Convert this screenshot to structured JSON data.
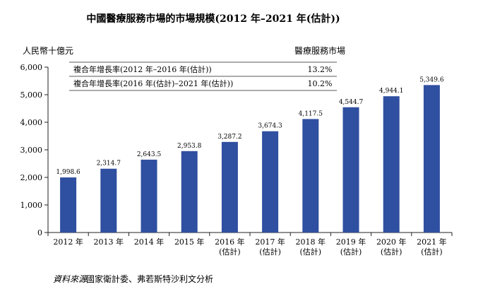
{
  "chart_data": {
    "type": "bar",
    "title": "中國醫療服務市場的市場規模(2012 年–2021 年(估計))",
    "ylabel": "人民幣十億元",
    "categories": [
      [
        "2012 年"
      ],
      [
        "2013 年"
      ],
      [
        "2014 年"
      ],
      [
        "2015 年"
      ],
      [
        "2016 年",
        "(估計)"
      ],
      [
        "2017 年",
        "(估計)"
      ],
      [
        "2018 年",
        "(估計)"
      ],
      [
        "2019 年",
        "(估計)"
      ],
      [
        "2020 年",
        "(估計)"
      ],
      [
        "2021 年",
        "(估計)"
      ]
    ],
    "values": [
      1998.6,
      2314.7,
      2643.5,
      2953.8,
      3287.2,
      3674.3,
      4117.5,
      4544.7,
      4944.1,
      5349.6
    ],
    "value_labels": [
      "1,998.6",
      "2,314.7",
      "2,643.5",
      "2,953.8",
      "3,287.2",
      "3,674.3",
      "4,117.5",
      "4,544.7",
      "4,944.1",
      "5,349.6"
    ],
    "ylim": [
      0,
      6000
    ],
    "yticks": [
      0,
      1000,
      2000,
      3000,
      4000,
      5000,
      6000
    ],
    "ytick_labels": [
      "0",
      "1,000",
      "2,000",
      "3,000",
      "4,000",
      "5,000",
      "6,000"
    ],
    "grid": false,
    "bar_color": "#2f4fa0",
    "cagr_table": {
      "header": "醫療服務市場",
      "rows": [
        {
          "label": "複合年增長率(2012 年–2016 年(估計))",
          "value": "13.2%"
        },
        {
          "label": "複合年增長率(2016 年(估計)–2021 年(估計))",
          "value": "10.2%"
        }
      ]
    }
  },
  "source": {
    "label": "資料來源",
    "text": ":國家衛計委、弗若斯特沙利文分析"
  }
}
